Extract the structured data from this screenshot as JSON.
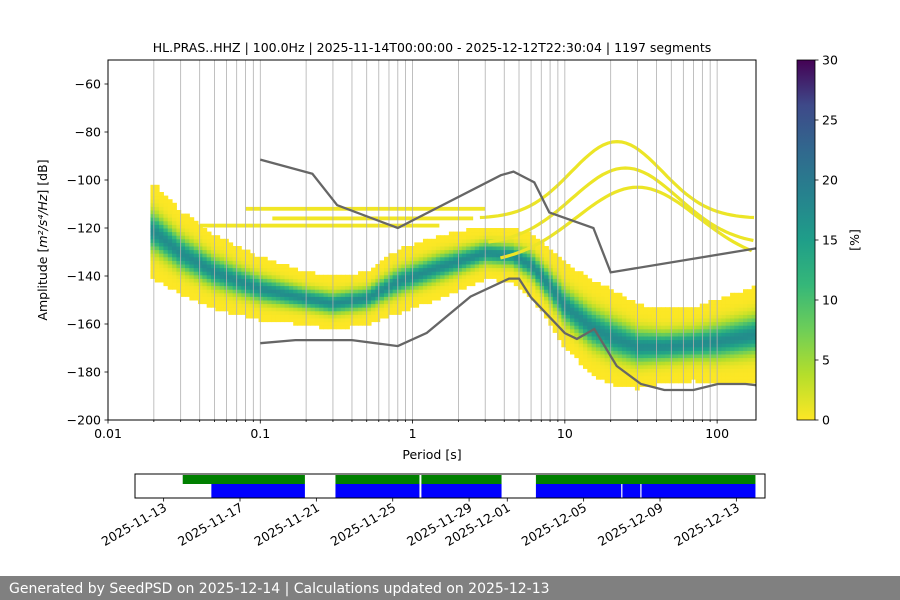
{
  "chart_data": {
    "type": "heatmap",
    "title": "HL.PRAS..HHZ | 100.0Hz | 2025-11-14T00:00:00 - 2025-12-12T22:30:04 | 1197 segments",
    "xlabel": "Period [s]",
    "ylabel_main": "Amplitude [",
    "ylabel_math": "m²/s⁴/Hz",
    "ylabel_tail": "] [dB]",
    "x_scale": "log",
    "xlim": [
      0.01,
      180
    ],
    "ylim": [
      -200,
      -50
    ],
    "x_ticks": [
      {
        "value": 0.01,
        "label": "0.01"
      },
      {
        "value": 0.1,
        "label": "0.1"
      },
      {
        "value": 1,
        "label": "1"
      },
      {
        "value": 10,
        "label": "10"
      },
      {
        "value": 100,
        "label": "100"
      }
    ],
    "y_ticks": [
      -60,
      -80,
      -100,
      -120,
      -140,
      -160,
      -180,
      -200
    ],
    "colorbar": {
      "label": "[%]",
      "range": [
        0,
        30
      ],
      "ticks": [
        0,
        5,
        10,
        15,
        20,
        25,
        30
      ],
      "colormap": "viridis_r"
    },
    "mode_curve": {
      "period": [
        0.02,
        0.03,
        0.05,
        0.1,
        0.2,
        0.3,
        0.5,
        0.8,
        1.5,
        3,
        4.5,
        6,
        8,
        10,
        15,
        20,
        30,
        45,
        70,
        100,
        180
      ],
      "db": [
        -122,
        -131,
        -139,
        -146,
        -150,
        -152,
        -150,
        -143,
        -137,
        -131,
        -132,
        -136,
        -145,
        -153,
        -162,
        -166,
        -170,
        -170,
        -169,
        -168,
        -165
      ]
    },
    "spread_curve": {
      "period": [
        0.02,
        0.03,
        0.05,
        0.1,
        0.2,
        0.3,
        0.5,
        0.8,
        1.5,
        3,
        4.5,
        6,
        8,
        10,
        15,
        20,
        30,
        45,
        70,
        100,
        180
      ],
      "db": [
        9,
        8,
        7,
        6,
        5,
        5,
        5,
        6,
        6,
        5,
        5,
        6,
        7,
        8,
        9,
        9,
        8,
        7,
        7,
        8,
        9
      ]
    },
    "spurious_levels": [
      {
        "db": -112,
        "p_min": 0.08,
        "p_max": 3
      },
      {
        "db": -116,
        "p_min": 0.12,
        "p_max": 2.5
      },
      {
        "db": -119,
        "p_min": 0.04,
        "p_max": 1.5
      }
    ],
    "microseism_arcs": [
      {
        "peak_period": 22,
        "peak_db": -84,
        "width": 0.3
      },
      {
        "peak_period": 25,
        "peak_db": -95,
        "width": 0.35
      },
      {
        "peak_period": 30,
        "peak_db": -103,
        "width": 0.4
      }
    ],
    "nhnm": {
      "period": [
        0.1,
        0.22,
        0.32,
        0.8,
        3.8,
        4.6,
        6.3,
        7.9,
        15.4,
        20,
        180
      ],
      "db": [
        -91.5,
        -97.4,
        -110.5,
        -120,
        -98,
        -96.5,
        -101,
        -113.5,
        -120,
        -138.5,
        -128.5
      ]
    },
    "nlnm": {
      "period": [
        0.1,
        0.17,
        0.4,
        0.8,
        1.24,
        2.4,
        4.3,
        5,
        6,
        10,
        12,
        15.6,
        21.9,
        31.6,
        45,
        70,
        101,
        154,
        180
      ],
      "db": [
        -168,
        -166.7,
        -166.7,
        -169.2,
        -163.7,
        -148.6,
        -141.1,
        -141.1,
        -149,
        -163.8,
        -166.2,
        -162.1,
        -177.5,
        -185,
        -187.5,
        -187.5,
        -185,
        -185,
        -185.5
      ]
    },
    "availability": {
      "date_ticks": [
        "2025-11-13",
        "2025-11-17",
        "2025-11-21",
        "2025-11-25",
        "2025-11-29",
        "2025-12-01",
        "2025-12-05",
        "2025-12-09",
        "2025-12-13"
      ],
      "date_tick_days": [
        0,
        4,
        8,
        12,
        16,
        18,
        22,
        26,
        30
      ],
      "day_range": [
        -1.5,
        31.5
      ],
      "data_spans_days": [
        [
          1.0,
          7.4
        ],
        [
          9.0,
          13.4
        ],
        [
          13.5,
          17.7
        ],
        [
          19.5,
          31.0
        ]
      ],
      "psd_spans_days": [
        [
          2.5,
          7.4
        ],
        [
          9.0,
          13.4
        ],
        [
          13.5,
          17.7
        ],
        [
          19.5,
          31.0
        ]
      ],
      "psd_gaps_days": [
        24.0,
        25.0
      ],
      "data_color": "#008000",
      "psd_color": "#0000ff"
    }
  },
  "footer": {
    "text": "Generated by SeedPSD on 2025-12-14 | Calculations updated on 2025-12-13",
    "bg": "#808080"
  }
}
